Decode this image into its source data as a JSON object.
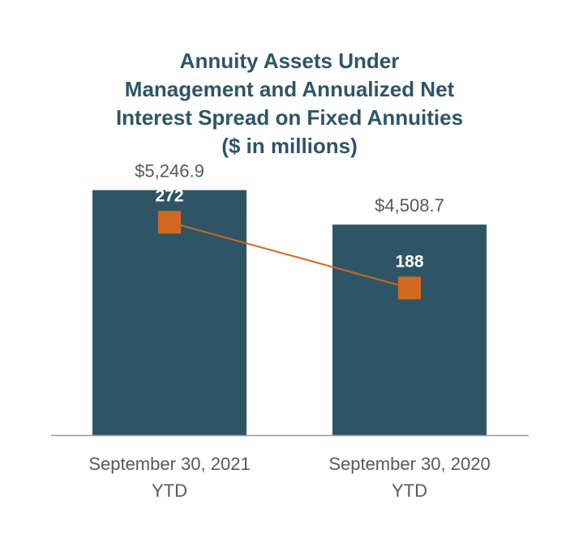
{
  "chart_data": {
    "type": "bar",
    "title_lines": [
      "Annuity Assets Under",
      "Management and Annualized Net",
      "Interest Spread on Fixed Annuities",
      "($ in millions)"
    ],
    "categories": [
      [
        "September 30, 2021",
        "YTD"
      ],
      [
        "September 30, 2020",
        "YTD"
      ]
    ],
    "bar_series": {
      "values": [
        5246.9,
        4508.7
      ],
      "labels": [
        "$5,246.9",
        "$4,508.7"
      ],
      "color": "#2e5566"
    },
    "line_series": {
      "values": [
        272,
        188
      ],
      "labels": [
        "272",
        "188"
      ],
      "color": "#d2691e"
    },
    "bar_axis_range": [
      0,
      5900
    ],
    "line_axis_range": [
      0,
      352
    ],
    "grid": false,
    "legend": "none",
    "colors": {
      "title": "#2e5566",
      "baseline": "#999999",
      "value_label": "#595959",
      "category_label": "#595959",
      "line_label": "#ffffff"
    }
  }
}
